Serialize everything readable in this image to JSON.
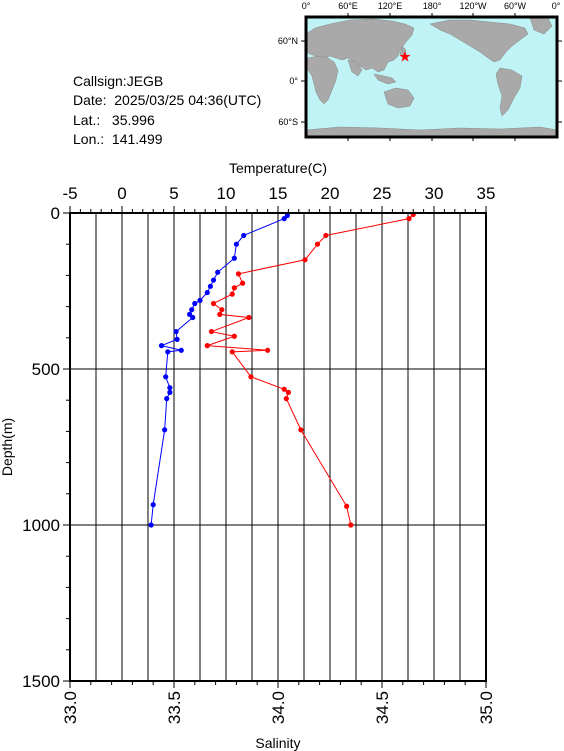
{
  "info": {
    "callsign": "Callsign:JEGB",
    "date": "Date:  2025/03/25 04:36(UTC)",
    "lat": "Lat.:   35.996",
    "lon": "Lon.:  141.499"
  },
  "map": {
    "lon_labels": [
      "0°",
      "60°E",
      "120°E",
      "180°",
      "120°W",
      "60°W",
      "0°"
    ],
    "lat_labels": [
      "60°N",
      "0°",
      "60°S"
    ],
    "ocean_color": "#bff3f5",
    "land_color": "#a9a9a9",
    "marker": {
      "lat": 35.996,
      "lon": 141.499,
      "color": "#ff0000"
    }
  },
  "chart_data": {
    "type": "line",
    "top_axis": {
      "label": "Temperature(C)",
      "range": [
        -5,
        35
      ],
      "ticks": [
        "-5",
        "0",
        "5",
        "10",
        "15",
        "20",
        "25",
        "30",
        "35"
      ]
    },
    "bottom_axis": {
      "label": "Salinity",
      "range": [
        33.0,
        35.0
      ],
      "ticks": [
        "33.0",
        "33.5",
        "34.0",
        "34.5",
        "35.0"
      ]
    },
    "y_axis": {
      "label": "Depth(m)",
      "range": [
        0,
        1500
      ],
      "inverted": true,
      "ticks": [
        "0",
        "500",
        "1000",
        "1500"
      ]
    },
    "grid": true,
    "series": [
      {
        "name": "Temperature",
        "axis": "top",
        "color": "#0000ff",
        "points": [
          [
            15.9,
            8
          ],
          [
            15.6,
            18
          ],
          [
            11.7,
            72
          ],
          [
            11.0,
            100
          ],
          [
            10.8,
            145
          ],
          [
            9.2,
            190
          ],
          [
            8.8,
            215
          ],
          [
            8.5,
            235
          ],
          [
            8.2,
            255
          ],
          [
            7.5,
            280
          ],
          [
            7.0,
            290
          ],
          [
            6.7,
            310
          ],
          [
            6.5,
            325
          ],
          [
            6.8,
            335
          ],
          [
            5.2,
            380
          ],
          [
            5.3,
            405
          ],
          [
            3.8,
            425
          ],
          [
            5.7,
            440
          ],
          [
            4.4,
            445
          ],
          [
            4.2,
            525
          ],
          [
            4.6,
            560
          ],
          [
            4.6,
            575
          ],
          [
            4.3,
            595
          ],
          [
            4.1,
            695
          ],
          [
            3.0,
            935
          ],
          [
            2.8,
            1000
          ]
        ]
      },
      {
        "name": "Salinity",
        "axis": "bottom",
        "color": "#ff0000",
        "points": [
          [
            34.65,
            5
          ],
          [
            34.63,
            18
          ],
          [
            34.23,
            72
          ],
          [
            34.19,
            100
          ],
          [
            34.13,
            150
          ],
          [
            33.81,
            195
          ],
          [
            33.83,
            225
          ],
          [
            33.79,
            240
          ],
          [
            33.78,
            260
          ],
          [
            33.69,
            290
          ],
          [
            33.73,
            310
          ],
          [
            33.72,
            325
          ],
          [
            33.86,
            335
          ],
          [
            33.68,
            380
          ],
          [
            33.79,
            395
          ],
          [
            33.66,
            425
          ],
          [
            33.95,
            440
          ],
          [
            33.78,
            445
          ],
          [
            33.87,
            525
          ],
          [
            34.03,
            565
          ],
          [
            34.05,
            575
          ],
          [
            34.04,
            595
          ],
          [
            34.11,
            695
          ],
          [
            34.33,
            940
          ],
          [
            34.35,
            1000
          ]
        ]
      }
    ]
  }
}
